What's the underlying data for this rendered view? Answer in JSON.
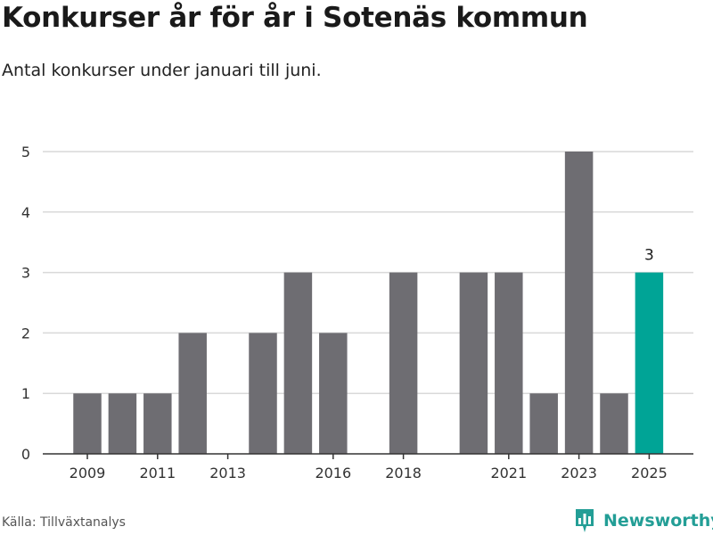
{
  "header": {
    "title": "Konkurser år för år i Sotenäs kommun",
    "subtitle": "Antal konkurser under januari till juni."
  },
  "footer": {
    "source": "Källa: Tillväxtanalys",
    "brand": "Newsworthy",
    "brand_icon": "bar-chart-logo-icon"
  },
  "colors": {
    "bar": "#6e6d72",
    "highlight": "#00a496",
    "grid": "#d9d9d9",
    "axis": "#333333",
    "brand": "#239e96"
  },
  "chart_data": {
    "type": "bar",
    "title": "Konkurser år för år i Sotenäs kommun",
    "subtitle": "Antal konkurser under januari till juni.",
    "categories": [
      2009,
      2010,
      2011,
      2012,
      2013,
      2014,
      2015,
      2016,
      2017,
      2018,
      2019,
      2020,
      2021,
      2022,
      2023,
      2024,
      2025
    ],
    "values": [
      1,
      1,
      1,
      2,
      0,
      2,
      3,
      2,
      0,
      3,
      0,
      3,
      3,
      1,
      5,
      1,
      3
    ],
    "x_tick_labels": [
      "2009",
      "2011",
      "2013",
      "2016",
      "2018",
      "2021",
      "2023",
      "2025"
    ],
    "y_ticks": [
      0,
      1,
      2,
      3,
      4,
      5
    ],
    "ylim": [
      0,
      5
    ],
    "highlight": {
      "category": 2025,
      "value_label": "3"
    },
    "xlabel": "",
    "ylabel": "",
    "grid": true,
    "legend": false
  }
}
